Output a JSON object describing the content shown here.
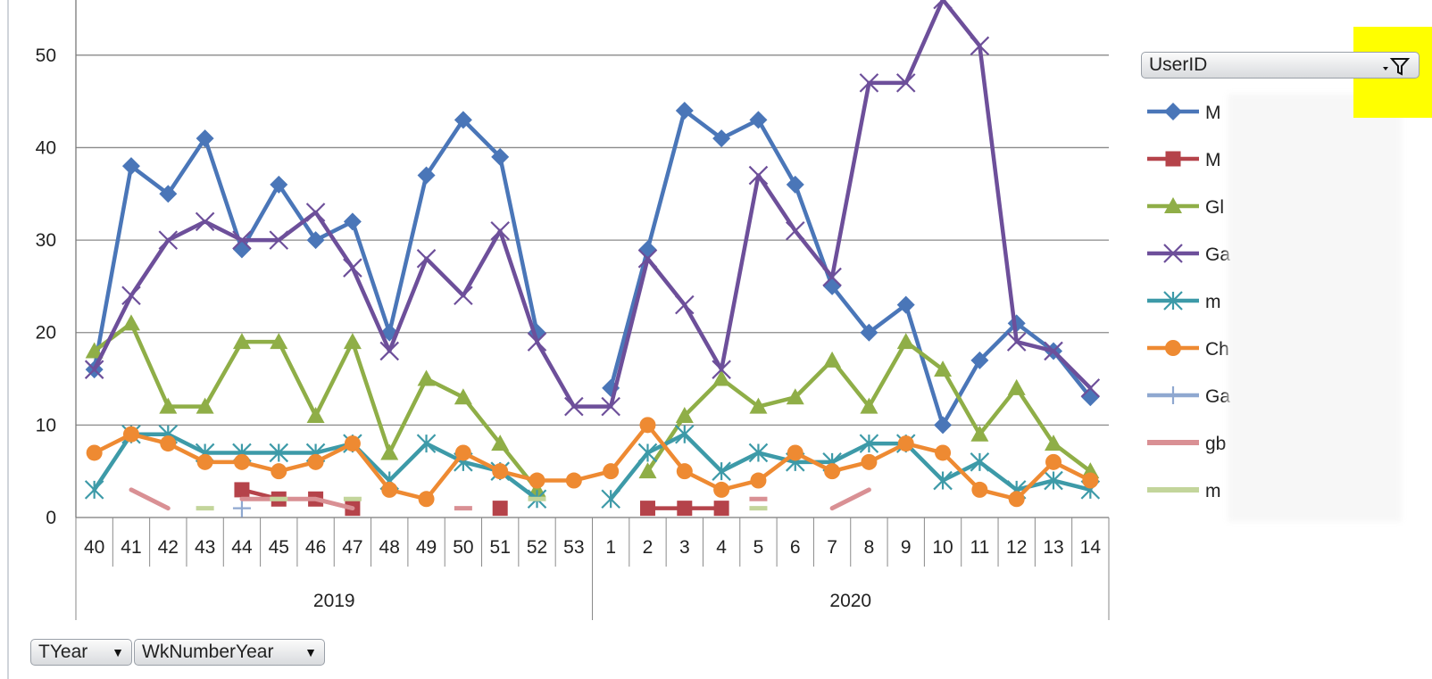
{
  "chart_data": {
    "type": "line",
    "ylim": [
      0,
      55
    ],
    "yticks": [
      0,
      10,
      20,
      30,
      40,
      50
    ],
    "categories": [
      "40",
      "41",
      "42",
      "43",
      "44",
      "45",
      "46",
      "47",
      "48",
      "49",
      "50",
      "51",
      "52",
      "53",
      "1",
      "2",
      "3",
      "4",
      "5",
      "6",
      "7",
      "8",
      "9",
      "10",
      "11",
      "12",
      "13",
      "14"
    ],
    "groups": [
      {
        "label": "2019",
        "span": 14
      },
      {
        "label": "2020",
        "span": 14
      }
    ],
    "series": [
      {
        "name": "M",
        "color": "#4a76b8",
        "marker": "diamond",
        "values": [
          16,
          38,
          35,
          41,
          29,
          36,
          30,
          32,
          20,
          37,
          43,
          39,
          20,
          null,
          14,
          29,
          44,
          41,
          43,
          36,
          25,
          20,
          23,
          10,
          17,
          21,
          18,
          13
        ]
      },
      {
        "name": "M",
        "color": "#b5434a",
        "marker": "square",
        "values": [
          null,
          null,
          null,
          null,
          3,
          2,
          2,
          1,
          null,
          null,
          null,
          1,
          null,
          null,
          null,
          1,
          1,
          1,
          null,
          null,
          null,
          null,
          null,
          null,
          null,
          null,
          null,
          null
        ]
      },
      {
        "name": "Gl",
        "color": "#8fae47",
        "marker": "triangle",
        "values": [
          18,
          21,
          12,
          12,
          19,
          19,
          11,
          19,
          7,
          15,
          13,
          8,
          3,
          null,
          null,
          5,
          11,
          15,
          12,
          13,
          17,
          12,
          19,
          16,
          9,
          14,
          8,
          5
        ]
      },
      {
        "name": "Ga",
        "color": "#6d4f9a",
        "marker": "x",
        "values": [
          16,
          24,
          30,
          32,
          30,
          30,
          33,
          27,
          18,
          28,
          24,
          31,
          19,
          12,
          12,
          28,
          23,
          16,
          37,
          31,
          26,
          47,
          47,
          56,
          51,
          19,
          18,
          14
        ]
      },
      {
        "name": "m",
        "color": "#3d9aa8",
        "marker": "star",
        "values": [
          3,
          9,
          9,
          7,
          7,
          7,
          7,
          8,
          4,
          8,
          6,
          5,
          2,
          null,
          2,
          7,
          9,
          5,
          7,
          6,
          6,
          8,
          8,
          4,
          6,
          3,
          4,
          3
        ]
      },
      {
        "name": "Ch",
        "color": "#ee8a32",
        "marker": "circle",
        "values": [
          7,
          9,
          8,
          6,
          6,
          5,
          6,
          8,
          3,
          2,
          7,
          5,
          4,
          4,
          5,
          10,
          5,
          3,
          4,
          7,
          5,
          6,
          8,
          7,
          3,
          2,
          6,
          4
        ]
      },
      {
        "name": "Ga",
        "color": "#8fa8d0",
        "marker": "plus",
        "values": [
          null,
          null,
          null,
          null,
          1,
          null,
          null,
          null,
          null,
          null,
          null,
          null,
          null,
          null,
          null,
          null,
          null,
          null,
          null,
          null,
          null,
          null,
          null,
          null,
          null,
          null,
          null,
          null
        ]
      },
      {
        "name": "gb",
        "color": "#d99094",
        "marker": "none",
        "values": [
          null,
          3,
          1,
          null,
          2,
          2,
          2,
          1,
          null,
          null,
          1,
          null,
          null,
          null,
          null,
          null,
          null,
          null,
          2,
          null,
          1,
          3,
          null,
          null,
          null,
          null,
          null,
          null
        ]
      },
      {
        "name": "m",
        "color": "#c3d59b",
        "marker": "none",
        "values": [
          null,
          null,
          null,
          1,
          null,
          2,
          null,
          2,
          null,
          null,
          null,
          null,
          2,
          null,
          null,
          null,
          null,
          null,
          1,
          null,
          null,
          null,
          null,
          null,
          null,
          null,
          null,
          null
        ]
      }
    ]
  },
  "field_buttons": {
    "series_field": "UserID",
    "axis_field_1": "TYear",
    "axis_field_2": "WkNumberYear"
  }
}
